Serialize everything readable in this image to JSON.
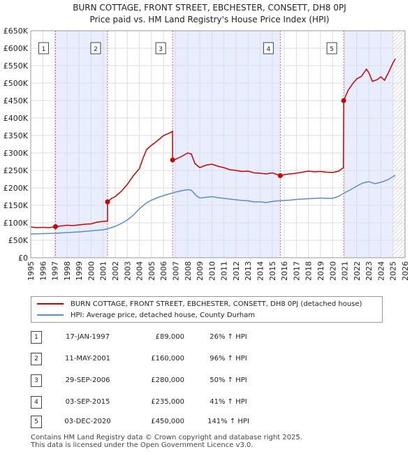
{
  "title_line1": "BURN COTTAGE, FRONT STREET, EBCHESTER, CONSETT, DH8 0PJ",
  "title_line2": "Price paid vs. HM Land Registry's House Price Index (HPI)",
  "colors": {
    "property": "#cc0000",
    "hpi": "#5b8ec4",
    "shade": "#e8eeff",
    "marker_line": "#e06060"
  },
  "chart_data": {
    "type": "line",
    "title": "Price paid vs. HM Land Registry's House Price Index (HPI)",
    "xlabel": "",
    "ylabel": "",
    "xlim": [
      1995,
      2026
    ],
    "ylim": [
      0,
      650000
    ],
    "y_ticks": [
      0,
      50000,
      100000,
      150000,
      200000,
      250000,
      300000,
      350000,
      400000,
      450000,
      500000,
      550000,
      600000,
      650000
    ],
    "y_tick_labels": [
      "£0",
      "£50K",
      "£100K",
      "£150K",
      "£200K",
      "£250K",
      "£300K",
      "£350K",
      "£400K",
      "£450K",
      "£500K",
      "£550K",
      "£600K",
      "£650K"
    ],
    "x_ticks": [
      1995,
      1996,
      1997,
      1998,
      1999,
      2000,
      2001,
      2002,
      2003,
      2004,
      2005,
      2006,
      2007,
      2008,
      2009,
      2010,
      2011,
      2012,
      2013,
      2014,
      2015,
      2016,
      2017,
      2018,
      2019,
      2020,
      2021,
      2022,
      2023,
      2024,
      2025,
      2026
    ],
    "hatched_from": 2025.0,
    "series": [
      {
        "name": "BURN COTTAGE, FRONT STREET, EBCHESTER, CONSETT, DH8 0PJ (detached house)",
        "points": [
          [
            1995.0,
            88000
          ],
          [
            1995.5,
            86000
          ],
          [
            1996.0,
            87000
          ],
          [
            1996.5,
            86000
          ],
          [
            1997.05,
            89000
          ],
          [
            1997.5,
            91000
          ],
          [
            1998.0,
            93000
          ],
          [
            1998.5,
            92000
          ],
          [
            1999.0,
            94000
          ],
          [
            1999.5,
            96000
          ],
          [
            2000.0,
            97000
          ],
          [
            2000.5,
            102000
          ],
          [
            2001.0,
            104000
          ],
          [
            2001.36,
            105000
          ],
          [
            2001.36,
            160000
          ],
          [
            2001.7,
            170000
          ],
          [
            2002.0,
            175000
          ],
          [
            2002.5,
            190000
          ],
          [
            2003.0,
            210000
          ],
          [
            2003.5,
            235000
          ],
          [
            2004.0,
            255000
          ],
          [
            2004.3,
            285000
          ],
          [
            2004.6,
            310000
          ],
          [
            2005.0,
            322000
          ],
          [
            2005.5,
            335000
          ],
          [
            2006.0,
            350000
          ],
          [
            2006.5,
            357000
          ],
          [
            2006.74,
            362000
          ],
          [
            2006.75,
            280000
          ],
          [
            2007.0,
            282000
          ],
          [
            2007.5,
            290000
          ],
          [
            2008.0,
            300000
          ],
          [
            2008.3,
            297000
          ],
          [
            2008.6,
            270000
          ],
          [
            2009.0,
            258000
          ],
          [
            2009.5,
            265000
          ],
          [
            2010.0,
            268000
          ],
          [
            2010.5,
            262000
          ],
          [
            2011.0,
            258000
          ],
          [
            2011.5,
            252000
          ],
          [
            2012.0,
            250000
          ],
          [
            2012.5,
            247000
          ],
          [
            2013.0,
            248000
          ],
          [
            2013.5,
            243000
          ],
          [
            2014.0,
            242000
          ],
          [
            2014.5,
            240000
          ],
          [
            2015.0,
            243000
          ],
          [
            2015.67,
            235000
          ],
          [
            2016.0,
            238000
          ],
          [
            2016.5,
            240000
          ],
          [
            2017.0,
            242000
          ],
          [
            2017.5,
            245000
          ],
          [
            2018.0,
            248000
          ],
          [
            2018.5,
            246000
          ],
          [
            2019.0,
            247000
          ],
          [
            2019.5,
            245000
          ],
          [
            2020.0,
            244000
          ],
          [
            2020.5,
            248000
          ],
          [
            2020.9,
            258000
          ],
          [
            2020.92,
            450000
          ],
          [
            2021.3,
            480000
          ],
          [
            2021.7,
            500000
          ],
          [
            2022.0,
            512000
          ],
          [
            2022.4,
            520000
          ],
          [
            2022.8,
            540000
          ],
          [
            2023.0,
            530000
          ],
          [
            2023.3,
            505000
          ],
          [
            2023.7,
            510000
          ],
          [
            2024.0,
            518000
          ],
          [
            2024.3,
            508000
          ],
          [
            2024.7,
            535000
          ],
          [
            2025.0,
            558000
          ],
          [
            2025.2,
            570000
          ]
        ]
      },
      {
        "name": "HPI: Average price, detached house, County Durham",
        "points": [
          [
            1995.0,
            68000
          ],
          [
            1996.0,
            69000
          ],
          [
            1997.0,
            70000
          ],
          [
            1998.0,
            72000
          ],
          [
            1999.0,
            74000
          ],
          [
            2000.0,
            77000
          ],
          [
            2001.0,
            80000
          ],
          [
            2001.5,
            84000
          ],
          [
            2002.0,
            90000
          ],
          [
            2002.5,
            98000
          ],
          [
            2003.0,
            108000
          ],
          [
            2003.5,
            122000
          ],
          [
            2004.0,
            140000
          ],
          [
            2004.5,
            155000
          ],
          [
            2005.0,
            165000
          ],
          [
            2005.5,
            172000
          ],
          [
            2006.0,
            178000
          ],
          [
            2006.5,
            183000
          ],
          [
            2007.0,
            188000
          ],
          [
            2007.5,
            192000
          ],
          [
            2008.0,
            195000
          ],
          [
            2008.3,
            193000
          ],
          [
            2008.7,
            178000
          ],
          [
            2009.0,
            171000
          ],
          [
            2009.5,
            173000
          ],
          [
            2010.0,
            175000
          ],
          [
            2010.5,
            172000
          ],
          [
            2011.0,
            170000
          ],
          [
            2011.5,
            168000
          ],
          [
            2012.0,
            166000
          ],
          [
            2012.5,
            164000
          ],
          [
            2013.0,
            163000
          ],
          [
            2013.5,
            160000
          ],
          [
            2014.0,
            160000
          ],
          [
            2014.5,
            158000
          ],
          [
            2015.0,
            161000
          ],
          [
            2015.5,
            163000
          ],
          [
            2016.0,
            164000
          ],
          [
            2016.5,
            165000
          ],
          [
            2017.0,
            167000
          ],
          [
            2017.5,
            168000
          ],
          [
            2018.0,
            169000
          ],
          [
            2018.5,
            170000
          ],
          [
            2019.0,
            171000
          ],
          [
            2019.5,
            170000
          ],
          [
            2020.0,
            170000
          ],
          [
            2020.5,
            176000
          ],
          [
            2021.0,
            186000
          ],
          [
            2021.5,
            195000
          ],
          [
            2022.0,
            205000
          ],
          [
            2022.5,
            214000
          ],
          [
            2023.0,
            218000
          ],
          [
            2023.5,
            212000
          ],
          [
            2024.0,
            216000
          ],
          [
            2024.5,
            222000
          ],
          [
            2025.0,
            232000
          ],
          [
            2025.2,
            236000
          ]
        ]
      }
    ],
    "sales": [
      {
        "num": "1",
        "x": 1997.05,
        "y": 89000
      },
      {
        "num": "2",
        "x": 2001.36,
        "y": 160000
      },
      {
        "num": "3",
        "x": 2006.75,
        "y": 280000
      },
      {
        "num": "4",
        "x": 2015.67,
        "y": 235000
      },
      {
        "num": "5",
        "x": 2020.92,
        "y": 450000
      }
    ]
  },
  "legend": {
    "property_label": "BURN COTTAGE, FRONT STREET, EBCHESTER, CONSETT, DH8 0PJ (detached house)",
    "hpi_label": "HPI: Average price, detached house, County Durham"
  },
  "transactions": [
    {
      "num": "1",
      "date": "17-JAN-1997",
      "price": "£89,000",
      "hpi": "26% ↑ HPI"
    },
    {
      "num": "2",
      "date": "11-MAY-2001",
      "price": "£160,000",
      "hpi": "96% ↑ HPI"
    },
    {
      "num": "3",
      "date": "29-SEP-2006",
      "price": "£280,000",
      "hpi": "50% ↑ HPI"
    },
    {
      "num": "4",
      "date": "03-SEP-2015",
      "price": "£235,000",
      "hpi": "41% ↑ HPI"
    },
    {
      "num": "5",
      "date": "03-DEC-2020",
      "price": "£450,000",
      "hpi": "141% ↑ HPI"
    }
  ],
  "footer_line1": "Contains HM Land Registry data © Crown copyright and database right 2025.",
  "footer_line2": "This data is licensed under the Open Government Licence v3.0."
}
